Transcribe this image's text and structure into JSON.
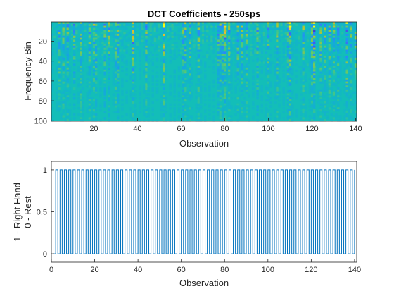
{
  "chart_data": [
    {
      "type": "heatmap",
      "title": "DCT Coefficients - 250sps",
      "xlabel": "Observation",
      "ylabel": "Frequency Bin",
      "xlim": [
        0.5,
        140.5
      ],
      "ylim": [
        0.5,
        100.5
      ],
      "y_reversed": true,
      "xticks": [
        20,
        40,
        60,
        80,
        100,
        120,
        140
      ],
      "yticks": [
        20,
        40,
        60,
        80,
        100
      ],
      "grid": false,
      "colormap": "parula",
      "n_observations": 140,
      "n_bins": 100,
      "dominant_color": "#13BEB8",
      "high_variance_observations": [
        4,
        6,
        8,
        11,
        14,
        18,
        20,
        21,
        25,
        27,
        30,
        31,
        38,
        44,
        52,
        61,
        62,
        64,
        68,
        77,
        78,
        79,
        80,
        82,
        86,
        88,
        90,
        95,
        100,
        104,
        109,
        110,
        116,
        120,
        121,
        124,
        126,
        128,
        130,
        132,
        136,
        138,
        140
      ],
      "strong_low_bin_observations": [
        38,
        52,
        80,
        110,
        121,
        136
      ]
    },
    {
      "type": "line",
      "title": "",
      "xlabel": "Observation",
      "ylabel": [
        "1 - Right Hand",
        "0 - Rest"
      ],
      "xlim": [
        0,
        141
      ],
      "ylim": [
        -0.1,
        1.1
      ],
      "xticks": [
        0,
        20,
        40,
        60,
        80,
        100,
        120,
        140
      ],
      "yticks": [
        0,
        0.5,
        1
      ],
      "grid": false,
      "series_color": "#0072BD",
      "x": [
        1,
        140
      ],
      "pattern": "alternating 0 (odd observations) and 1 (even observations), drawn as steps",
      "series": [
        {
          "values": [
            0,
            1
          ]
        }
      ]
    }
  ]
}
